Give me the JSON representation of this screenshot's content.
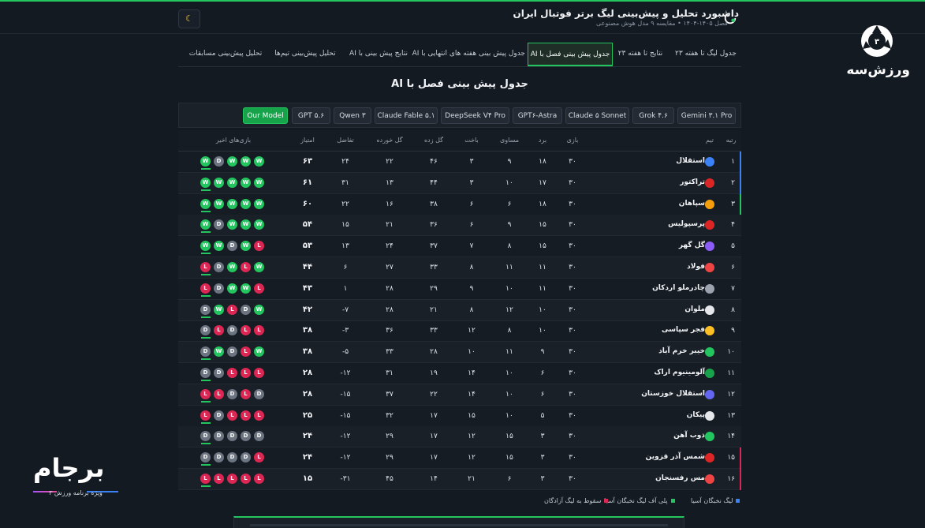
{
  "header": {
    "title": "داشبورد تحلیل و پیش‌بینی لیگ برتر فوتبال ایران",
    "subtitle": "فصل ۱۴۰۵-۱۴۰۴ • مقایسه ۹ مدل هوش مصنوعی",
    "theme_icon": "moon-icon"
  },
  "tabs": [
    {
      "label": "جدول لیگ تا هفته ۲۳",
      "active": false
    },
    {
      "label": "نتایج تا هفته ۲۳",
      "active": false
    },
    {
      "label": "جدول پیش بینی فصل با AI",
      "active": true
    },
    {
      "label": "جدول پیش بینی هفته های انتهایی با AI",
      "active": false
    },
    {
      "label": "نتایج پیش بینی با AI",
      "active": false
    },
    {
      "label": "تحلیل پیش‌بینی تیم‌ها",
      "active": false
    },
    {
      "label": "تحلیل پیش‌بینی مسابقات",
      "active": false
    }
  ],
  "section_title": "جدول پیش بینی فصل با AI",
  "models": [
    {
      "label": "Gemini ۳.۱ Pro",
      "selected": false
    },
    {
      "label": "Grok ۴.۶",
      "selected": false
    },
    {
      "label": "Claude ۵ Sonnet",
      "selected": false
    },
    {
      "label": "GPT۶-Astra",
      "selected": false
    },
    {
      "label": "DeepSeek V۴ Pro",
      "selected": false
    },
    {
      "label": "Claude Fable ۵.۱",
      "selected": false
    },
    {
      "label": "Qwen ۳",
      "selected": false
    },
    {
      "label": "GPT ۵.۶",
      "selected": false
    },
    {
      "label": "Our Model",
      "selected": true
    }
  ],
  "table": {
    "headers": {
      "rank": "رتبه",
      "team": "تیم",
      "played": "بازی",
      "won": "برد",
      "drawn": "مساوی",
      "lost": "باخت",
      "gf": "گل زده",
      "ga": "گل خورده",
      "gd": "تفاضل",
      "pts": "امتیاز",
      "form": "بازی‌های اخیر"
    },
    "rows": [
      {
        "rank": "۱",
        "team": "استقلال",
        "p": "۳۰",
        "w": "۱۸",
        "d": "۹",
        "l": "۳",
        "gf": "۴۶",
        "ga": "۲۲",
        "gd": "۲۴",
        "pts": "۶۳",
        "form": [
          "W",
          "D",
          "W",
          "W",
          "W"
        ],
        "zone": "acl",
        "crest": "#3b82f6"
      },
      {
        "rank": "۲",
        "team": "تراکتور",
        "p": "۳۰",
        "w": "۱۷",
        "d": "۱۰",
        "l": "۳",
        "gf": "۴۴",
        "ga": "۱۳",
        "gd": "۳۱",
        "pts": "۶۱",
        "form": [
          "W",
          "W",
          "W",
          "W",
          "W"
        ],
        "zone": "acl",
        "crest": "#dc2626"
      },
      {
        "rank": "۳",
        "team": "سپاهان",
        "p": "۳۰",
        "w": "۱۸",
        "d": "۶",
        "l": "۶",
        "gf": "۳۸",
        "ga": "۱۶",
        "gd": "۲۲",
        "pts": "۶۰",
        "form": [
          "W",
          "W",
          "W",
          "W",
          "W"
        ],
        "zone": "acl2",
        "crest": "#f59e0b"
      },
      {
        "rank": "۴",
        "team": "پرسپولیس",
        "p": "۳۰",
        "w": "۱۵",
        "d": "۹",
        "l": "۶",
        "gf": "۳۶",
        "ga": "۲۱",
        "gd": "۱۵",
        "pts": "۵۴",
        "form": [
          "W",
          "D",
          "W",
          "W",
          "W"
        ],
        "zone": "none",
        "crest": "#dc2626"
      },
      {
        "rank": "۵",
        "team": "گل گهر",
        "p": "۳۰",
        "w": "۱۵",
        "d": "۸",
        "l": "۷",
        "gf": "۳۷",
        "ga": "۲۴",
        "gd": "۱۳",
        "pts": "۵۳",
        "form": [
          "W",
          "W",
          "D",
          "W",
          "L"
        ],
        "zone": "none",
        "crest": "#8b5cf6"
      },
      {
        "rank": "۶",
        "team": "فولاد",
        "p": "۳۰",
        "w": "۱۱",
        "d": "۱۱",
        "l": "۸",
        "gf": "۳۳",
        "ga": "۲۷",
        "gd": "۶",
        "pts": "۴۴",
        "form": [
          "L",
          "D",
          "W",
          "L",
          "W"
        ],
        "zone": "none",
        "crest": "#ef4444"
      },
      {
        "rank": "۷",
        "team": "چادرملو اردکان",
        "p": "۳۰",
        "w": "۱۱",
        "d": "۱۰",
        "l": "۹",
        "gf": "۲۹",
        "ga": "۲۸",
        "gd": "۱",
        "pts": "۴۳",
        "form": [
          "L",
          "D",
          "W",
          "W",
          "L"
        ],
        "zone": "none",
        "crest": "#9ca3af"
      },
      {
        "rank": "۸",
        "team": "ملوان",
        "p": "۳۰",
        "w": "۱۰",
        "d": "۱۲",
        "l": "۸",
        "gf": "۲۱",
        "ga": "۲۸",
        "gd": "-۷",
        "pts": "۴۲",
        "form": [
          "D",
          "W",
          "L",
          "D",
          "W"
        ],
        "zone": "none",
        "crest": "#e5e7eb"
      },
      {
        "rank": "۹",
        "team": "فجر سپاسی",
        "p": "۳۰",
        "w": "۱۰",
        "d": "۸",
        "l": "۱۲",
        "gf": "۳۳",
        "ga": "۳۶",
        "gd": "-۳",
        "pts": "۳۸",
        "form": [
          "D",
          "L",
          "D",
          "L",
          "L"
        ],
        "zone": "none",
        "crest": "#fbbf24"
      },
      {
        "rank": "۱۰",
        "team": "خیبر خرم آباد",
        "p": "۳۰",
        "w": "۹",
        "d": "۱۱",
        "l": "۱۰",
        "gf": "۲۸",
        "ga": "۳۳",
        "gd": "-۵",
        "pts": "۳۸",
        "form": [
          "D",
          "W",
          "D",
          "L",
          "W"
        ],
        "zone": "none",
        "crest": "#22c55e"
      },
      {
        "rank": "۱۱",
        "team": "آلومینیوم اراک",
        "p": "۳۰",
        "w": "۶",
        "d": "۱۰",
        "l": "۱۴",
        "gf": "۱۹",
        "ga": "۳۱",
        "gd": "-۱۲",
        "pts": "۲۸",
        "form": [
          "D",
          "D",
          "L",
          "L",
          "L"
        ],
        "zone": "none",
        "crest": "#16a34a"
      },
      {
        "rank": "۱۲",
        "team": "استقلال خوزستان",
        "p": "۳۰",
        "w": "۶",
        "d": "۱۰",
        "l": "۱۴",
        "gf": "۲۲",
        "ga": "۳۷",
        "gd": "-۱۵",
        "pts": "۲۸",
        "form": [
          "L",
          "L",
          "D",
          "L",
          "D"
        ],
        "zone": "none",
        "crest": "#6366f1"
      },
      {
        "rank": "۱۳",
        "team": "پیکان",
        "p": "۳۰",
        "w": "۵",
        "d": "۱۰",
        "l": "۱۵",
        "gf": "۱۷",
        "ga": "۳۲",
        "gd": "-۱۵",
        "pts": "۲۵",
        "form": [
          "L",
          "D",
          "L",
          "L",
          "L"
        ],
        "zone": "none",
        "crest": "#e5e7eb"
      },
      {
        "rank": "۱۴",
        "team": "ذوب آهن",
        "p": "۳۰",
        "w": "۳",
        "d": "۱۵",
        "l": "۱۲",
        "gf": "۱۷",
        "ga": "۲۹",
        "gd": "-۱۲",
        "pts": "۲۴",
        "form": [
          "D",
          "D",
          "D",
          "D",
          "D"
        ],
        "zone": "none",
        "crest": "#22c55e"
      },
      {
        "rank": "۱۵",
        "team": "شمس آذر قزوین",
        "p": "۳۰",
        "w": "۳",
        "d": "۱۵",
        "l": "۱۲",
        "gf": "۱۷",
        "ga": "۲۹",
        "gd": "-۱۲",
        "pts": "۲۴",
        "form": [
          "D",
          "D",
          "D",
          "D",
          "L"
        ],
        "zone": "rel",
        "crest": "#dc2626"
      },
      {
        "rank": "۱۶",
        "team": "مس رفسنجان",
        "p": "۳۰",
        "w": "۳",
        "d": "۶",
        "l": "۲۱",
        "gf": "۱۴",
        "ga": "۴۵",
        "gd": "-۳۱",
        "pts": "۱۵",
        "form": [
          "L",
          "L",
          "L",
          "L",
          "L"
        ],
        "zone": "rel",
        "crest": "#ef4444"
      }
    ]
  },
  "legend": [
    {
      "label": "لیگ نخبگان آسیا",
      "color": "#3b82f6"
    },
    {
      "label": "پلی آف لیگ نخبگان آسیا",
      "color": "#22c55e"
    },
    {
      "label": "سقوط به لیگ آزادگان",
      "color": "#dc2653"
    }
  ],
  "brand": {
    "name": "ورزش‌سه"
  },
  "program": {
    "title": "برجام",
    "subtitle": "ویژه برنامه ورزش ۳"
  },
  "colors": {
    "accent": "#22c55e",
    "loss": "#dc2653",
    "draw": "#6b7480",
    "background": "#141a21"
  }
}
